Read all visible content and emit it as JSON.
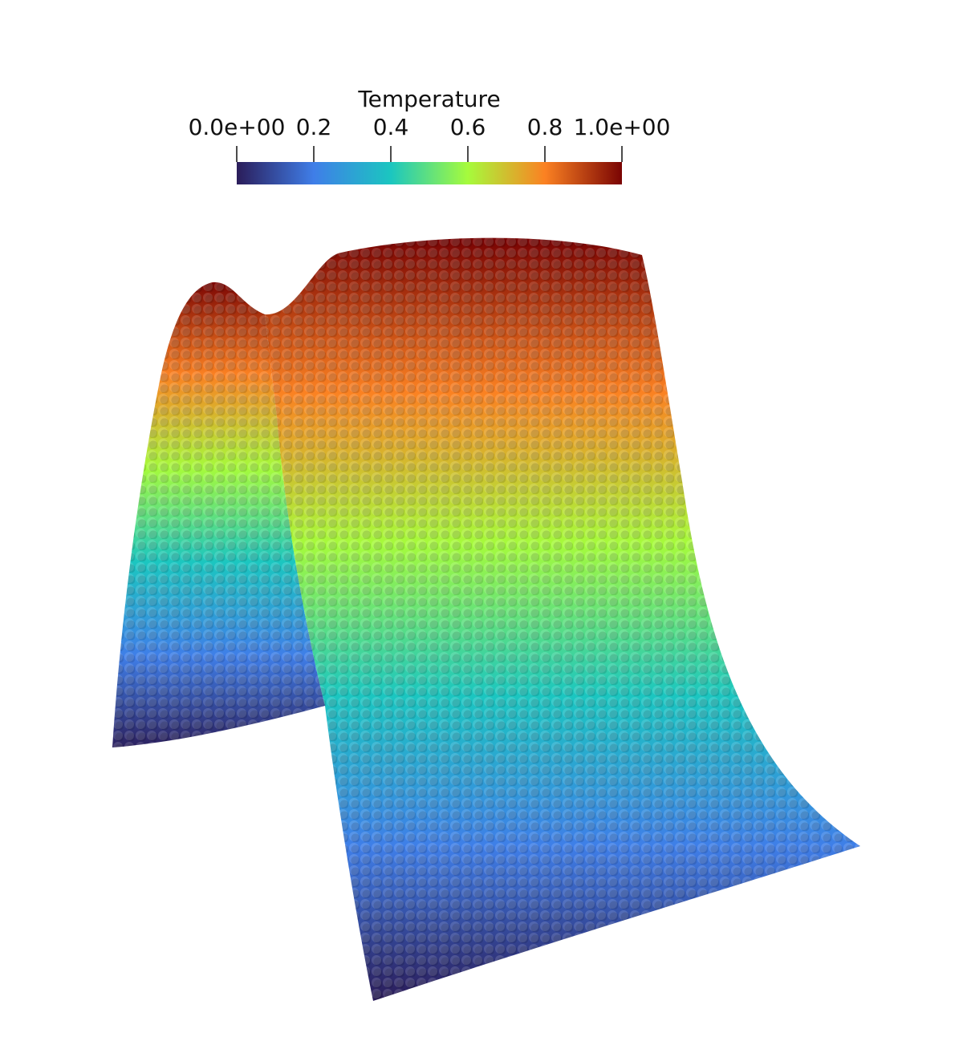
{
  "colorbar": {
    "title": "Temperature",
    "range": [
      0,
      1
    ],
    "ticks": [
      {
        "value": 0,
        "label": "0.0e+00"
      },
      0.2,
      0.4,
      0.6,
      0.8,
      {
        "value": 1,
        "label": "1.0e+00"
      }
    ],
    "colors": [
      "#2b1d5a",
      "#3f7ee8",
      "#1bc6c0",
      "#a6fb3c",
      "#fb8122",
      "#7a0403"
    ]
  }
}
